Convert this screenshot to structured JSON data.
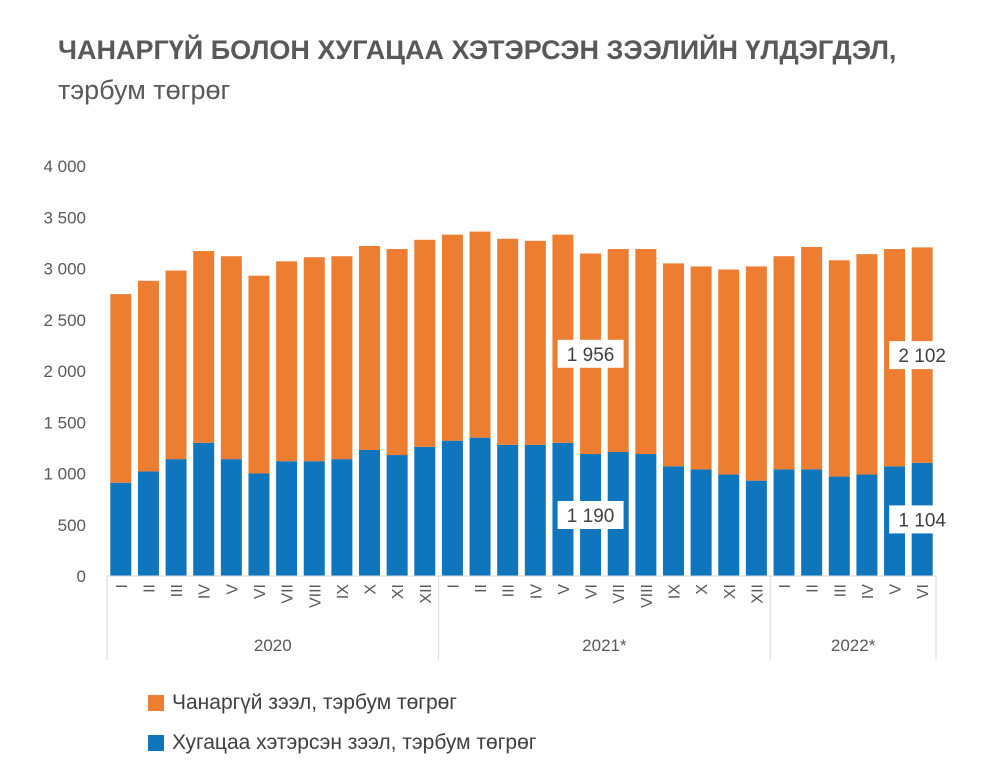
{
  "title": {
    "bold": "ЧАНАРГҮЙ БОЛОН ХУГАЦАА ХЭТЭРСЭН ЗЭЭЛИЙН ҮЛДЭГДЭЛ,",
    "unit": " тэрбум төгрөг"
  },
  "chart_data": {
    "type": "bar",
    "stacked": true,
    "categories": [
      "I",
      "II",
      "III",
      "IV",
      "V",
      "VI",
      "VII",
      "VIII",
      "IX",
      "X",
      "XI",
      "XII",
      "I",
      "II",
      "III",
      "IV",
      "V",
      "VI",
      "VII",
      "VIII",
      "IX",
      "X",
      "XI",
      "XII",
      "I",
      "II",
      "III",
      "IV",
      "V",
      "VI"
    ],
    "groups": [
      {
        "label": "2020",
        "start": 0,
        "count": 12
      },
      {
        "label": "2021*",
        "start": 12,
        "count": 12
      },
      {
        "label": "2022*",
        "start": 24,
        "count": 6
      }
    ],
    "series": [
      {
        "name": "Хугацаа хэтэрсэн зээл, тэрбум төгрөг",
        "color": "#0F75BC",
        "values": [
          910,
          1020,
          1140,
          1300,
          1140,
          1000,
          1120,
          1120,
          1140,
          1230,
          1180,
          1260,
          1320,
          1350,
          1280,
          1280,
          1300,
          1190,
          1210,
          1190,
          1070,
          1040,
          990,
          930,
          1040,
          1040,
          970,
          990,
          1070,
          1104
        ]
      },
      {
        "name": "Чанаргүй зээл, тэрбум төгрөг",
        "color": "#ED7D31",
        "values": [
          1840,
          1860,
          1840,
          1870,
          1980,
          1930,
          1950,
          1990,
          1980,
          1990,
          2010,
          2020,
          2010,
          2010,
          2010,
          1990,
          2030,
          1956,
          1980,
          2000,
          1980,
          1980,
          2000,
          2090,
          2080,
          2170,
          2110,
          2150,
          2120,
          2102
        ]
      }
    ],
    "ylim": [
      0,
      4000
    ],
    "yticks": [
      0,
      500,
      1000,
      1500,
      2000,
      2500,
      3000,
      3500,
      4000
    ],
    "ytick_labels": [
      "0",
      "500",
      "1 000",
      "1 500",
      "2 000",
      "2 500",
      "3 000",
      "3 500",
      "4 000"
    ],
    "annotations": [
      {
        "index": 17,
        "series": 1,
        "text": "1 956"
      },
      {
        "index": 17,
        "series": 0,
        "text": "1 190"
      },
      {
        "index": 29,
        "series": 1,
        "text": "2 102"
      },
      {
        "index": 29,
        "series": 0,
        "text": "1 104"
      }
    ],
    "grid": false,
    "legend_position": "bottom-left"
  },
  "legend": {
    "items": [
      {
        "label": "Чанаргүй зээл, тэрбум төгрөг",
        "color": "#ED7D31"
      },
      {
        "label": "Хугацаа хэтэрсэн зээл, тэрбум төгрөг",
        "color": "#0F75BC"
      }
    ]
  }
}
